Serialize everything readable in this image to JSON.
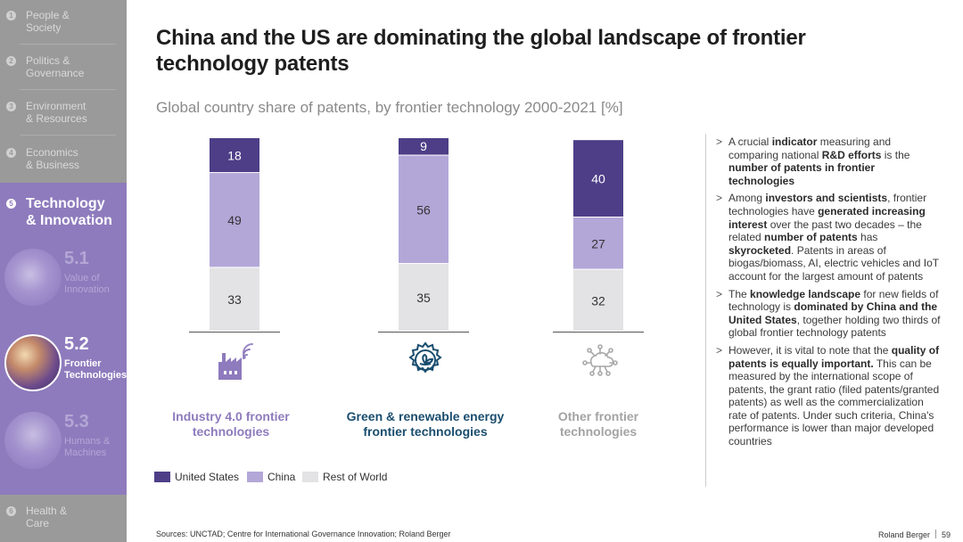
{
  "sidebar": {
    "items": [
      {
        "num": "1",
        "line1": "People &",
        "line2": "Society"
      },
      {
        "num": "2",
        "line1": "Politics &",
        "line2": "Governance"
      },
      {
        "num": "3",
        "line1": "Environment",
        "line2": "& Resources"
      },
      {
        "num": "4",
        "line1": "Economics",
        "line2": "& Business"
      },
      {
        "num": "5",
        "line1": "Technology",
        "line2": "& Innovation"
      },
      {
        "num": "6",
        "line1": "Health &",
        "line2": "Care"
      }
    ],
    "subitems": [
      {
        "num": "5.1",
        "line1": "Value of",
        "line2": "Innovation"
      },
      {
        "num": "5.2",
        "line1": "Frontier",
        "line2": "Technologies"
      },
      {
        "num": "5.3",
        "line1": "Humans &",
        "line2": "Machines"
      }
    ]
  },
  "header": {
    "title": "China and the US are dominating the global landscape of frontier technology patents",
    "subtitle": "Global country share of patents, by frontier technology 2000-2021 [%]"
  },
  "colors": {
    "us": "#4d3e87",
    "china": "#b3a7d8",
    "row": "#e3e3e5",
    "accent": "#8e7bbd",
    "teal": "#1a4d6e"
  },
  "chart_data": {
    "type": "bar",
    "stacked": true,
    "categories": [
      "Industry 4.0 frontier technologies",
      "Green & renewable energy frontier technologies",
      "Other frontier technologies"
    ],
    "series": [
      {
        "name": "Rest of World",
        "values": [
          33,
          35,
          32
        ]
      },
      {
        "name": "China",
        "values": [
          49,
          56,
          27
        ]
      },
      {
        "name": "United States",
        "values": [
          18,
          9,
          40
        ]
      }
    ],
    "ylim": [
      0,
      100
    ],
    "icons": [
      "factory-wifi-icon",
      "gear-leaf-icon",
      "cloud-network-icon"
    ],
    "legend": [
      "United States",
      "China",
      "Rest of World"
    ]
  },
  "bullets": [
    {
      "parts": [
        [
          "A crucial ",
          false
        ],
        [
          "indicator",
          true
        ],
        [
          " measuring and comparing national ",
          false
        ],
        [
          "R&D efforts",
          true
        ],
        [
          " is the ",
          false
        ],
        [
          "number of patents in frontier technologies",
          true
        ]
      ]
    },
    {
      "parts": [
        [
          "Among ",
          false
        ],
        [
          "investors and scientists",
          true
        ],
        [
          ", frontier technologies have ",
          false
        ],
        [
          "generated increasing interest",
          true
        ],
        [
          " over the past two decades – the related ",
          false
        ],
        [
          "number of patents",
          true
        ],
        [
          " has ",
          false
        ],
        [
          "skyrocketed",
          true
        ],
        [
          ". Patents in areas of biogas/biomass, AI, electric vehicles and IoT account for the largest amount of patents",
          false
        ]
      ]
    },
    {
      "parts": [
        [
          "The ",
          false
        ],
        [
          "knowledge landscape",
          true
        ],
        [
          " for new fields of technology is ",
          false
        ],
        [
          "dominated by China and the United States",
          true
        ],
        [
          ", together holding two thirds of global frontier technology patents",
          false
        ]
      ]
    },
    {
      "parts": [
        [
          "However, it is vital to note that the ",
          false
        ],
        [
          "quality of patents is equally important.",
          true
        ],
        [
          " This can be measured by the international scope of patents, the grant ratio (filed patents/granted patents) as well as the commercialization rate of patents. Under such criteria, China's performance is lower than major developed countries",
          false
        ]
      ]
    }
  ],
  "bullet_marker": ">",
  "footer": {
    "source": "Sources: UNCTAD; Centre for International Governance Innovation; Roland Berger",
    "brand": "Roland Berger",
    "page": "59"
  }
}
